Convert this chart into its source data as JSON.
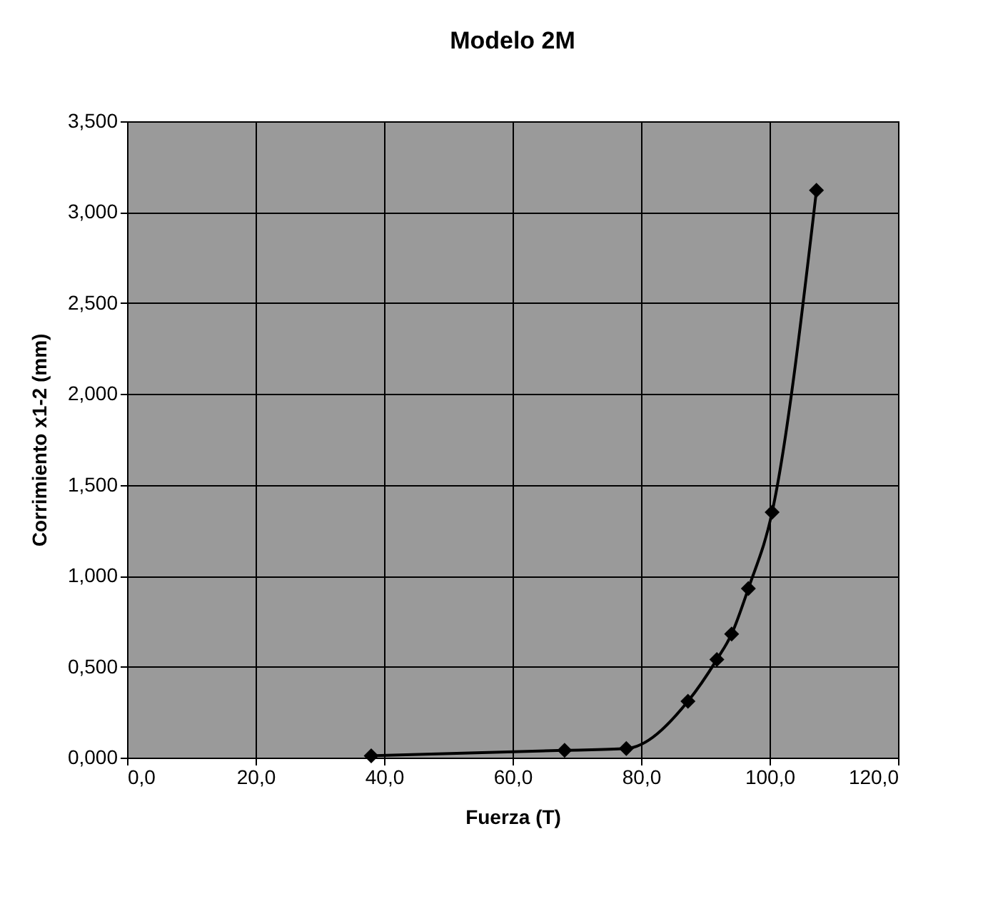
{
  "chart_data": {
    "type": "line",
    "title": "Modelo 2M",
    "xlabel": "Fuerza (T)",
    "ylabel": "Corrimiento x1-2 (mm)",
    "x": [
      38.0,
      68.1,
      77.7,
      87.3,
      91.8,
      94.1,
      96.7,
      100.4,
      107.3
    ],
    "series": [
      {
        "color": "#000000",
        "values": [
          0.01,
          0.04,
          0.05,
          0.31,
          0.54,
          0.68,
          0.93,
          1.35,
          3.12
        ]
      }
    ],
    "xlim": [
      0,
      120
    ],
    "ylim": [
      0,
      3.5
    ],
    "xticks": [
      {
        "value": 0,
        "label": "0,0"
      },
      {
        "value": 20,
        "label": "20,0"
      },
      {
        "value": 40,
        "label": "40,0"
      },
      {
        "value": 60,
        "label": "60,0"
      },
      {
        "value": 80,
        "label": "80,0"
      },
      {
        "value": 100,
        "label": "100,0"
      },
      {
        "value": 120,
        "label": "120,0"
      }
    ],
    "yticks": [
      {
        "value": 0,
        "label": "0,000"
      },
      {
        "value": 0.5,
        "label": "0,500"
      },
      {
        "value": 1,
        "label": "1,000"
      },
      {
        "value": 1.5,
        "label": "1,500"
      },
      {
        "value": 2,
        "label": "2,000"
      },
      {
        "value": 2.5,
        "label": "2,500"
      },
      {
        "value": 3,
        "label": "3,000"
      },
      {
        "value": 3.5,
        "label": "3,500"
      }
    ],
    "grid": true,
    "marker": "diamond",
    "line_style": "solid"
  }
}
